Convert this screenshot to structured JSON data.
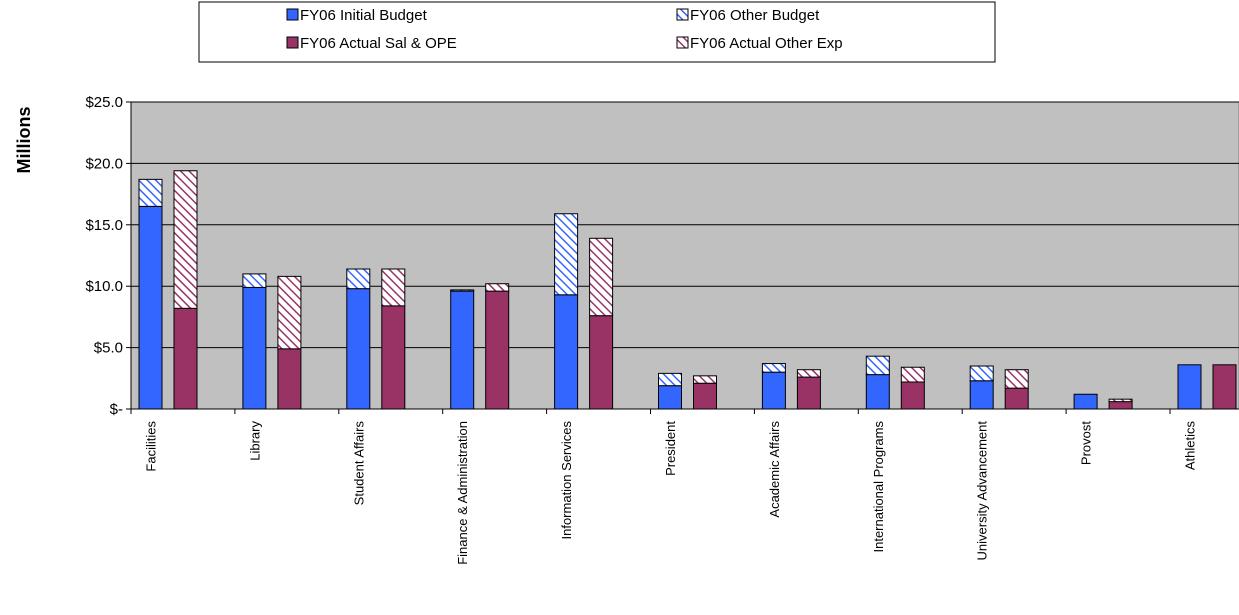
{
  "chart_data": {
    "type": "bar",
    "stacked": true,
    "ylabel": "Millions",
    "ylim": [
      0,
      25
    ],
    "ytick_values": [
      0,
      5,
      10,
      15,
      20,
      25
    ],
    "ytick_labels": [
      "$-",
      "$5.0",
      "$10.0",
      "$15.0",
      "$20.0",
      "$25.0"
    ],
    "grid": true,
    "legend_position": "top-center",
    "categories": [
      "Facilities",
      "Library",
      "Student Affairs",
      "Finance & Administration",
      "Information Services",
      "President",
      "Academic  Affairs",
      "International Programs",
      "University Advancement",
      "Provost",
      "Athletics"
    ],
    "series": [
      {
        "name": "FY06 Initial Budget",
        "stack": "budget",
        "color": "#3366ff",
        "pattern": "solid",
        "values": [
          16.5,
          9.9,
          9.8,
          9.6,
          9.3,
          1.9,
          3.0,
          2.8,
          2.3,
          1.2,
          3.6
        ]
      },
      {
        "name": "FY06 Other Budget",
        "stack": "budget",
        "color": "#3366ff",
        "pattern": "hatch",
        "values": [
          2.2,
          1.1,
          1.6,
          0.1,
          6.6,
          1.0,
          0.7,
          1.5,
          1.2,
          0.0,
          0.0
        ]
      },
      {
        "name": "FY06 Actual Sal & OPE",
        "stack": "actual",
        "color": "#993366",
        "pattern": "solid",
        "values": [
          8.2,
          4.9,
          8.4,
          9.6,
          7.6,
          2.1,
          2.6,
          2.2,
          1.7,
          0.6,
          3.6
        ]
      },
      {
        "name": "FY06 Actual Other Exp",
        "stack": "actual",
        "color": "#993366",
        "pattern": "hatch",
        "values": [
          11.2,
          5.9,
          3.0,
          0.6,
          6.3,
          0.6,
          0.6,
          1.2,
          1.5,
          0.2,
          0.0
        ]
      }
    ]
  }
}
